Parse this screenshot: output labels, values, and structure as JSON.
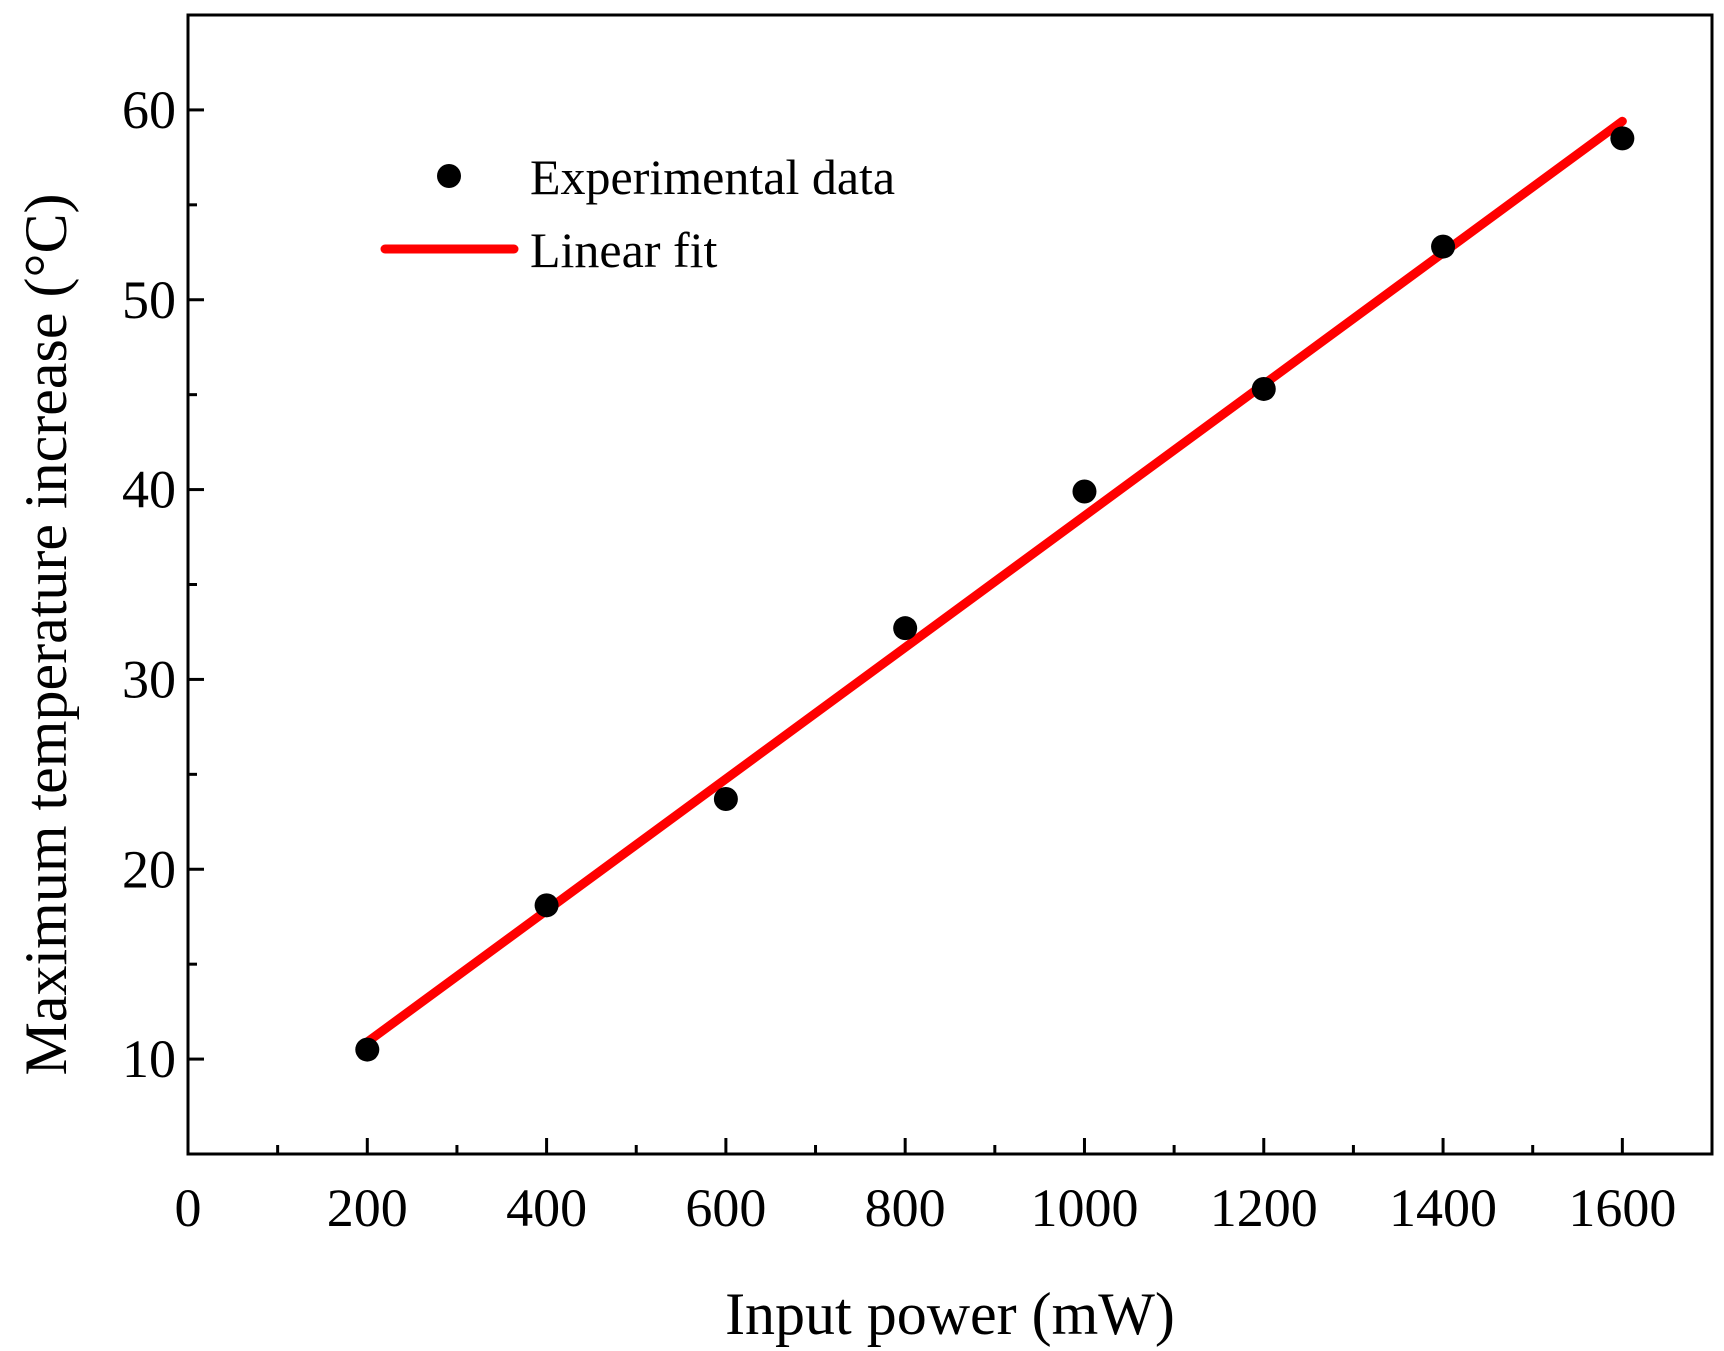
{
  "chart_data": {
    "type": "scatter",
    "xlabel": "Input power (mW)",
    "ylabel": "Maximum temperature increase (°C)",
    "xlim": [
      0,
      1700
    ],
    "ylim": [
      5,
      65
    ],
    "x_ticks": [
      0,
      200,
      400,
      600,
      800,
      1000,
      1200,
      1400,
      1600
    ],
    "x_tick_labels": [
      "0",
      "200",
      "400",
      "600",
      "800",
      "1000",
      "1200",
      "1400",
      "1600"
    ],
    "x_minor_ticks": [
      100,
      300,
      500,
      700,
      900,
      1100,
      1300,
      1500
    ],
    "y_ticks": [
      10,
      20,
      30,
      40,
      50,
      60
    ],
    "y_tick_labels": [
      "10",
      "20",
      "30",
      "40",
      "50",
      "60"
    ],
    "y_minor_ticks": [
      15,
      25,
      35,
      45,
      55
    ],
    "grid": false,
    "legend": {
      "position": "top-left",
      "entries": [
        "Experimental data",
        "Linear fit"
      ]
    },
    "series": [
      {
        "name": "Experimental data",
        "kind": "scatter",
        "color": "#000000",
        "x": [
          200,
          400,
          600,
          800,
          1000,
          1200,
          1400,
          1600
        ],
        "y": [
          10.5,
          18.1,
          23.7,
          32.7,
          39.9,
          45.3,
          52.8,
          58.5
        ]
      },
      {
        "name": "Linear fit",
        "kind": "line",
        "color": "#ff0000",
        "x": [
          200,
          1600
        ],
        "y": [
          10.9,
          59.4
        ]
      }
    ]
  }
}
